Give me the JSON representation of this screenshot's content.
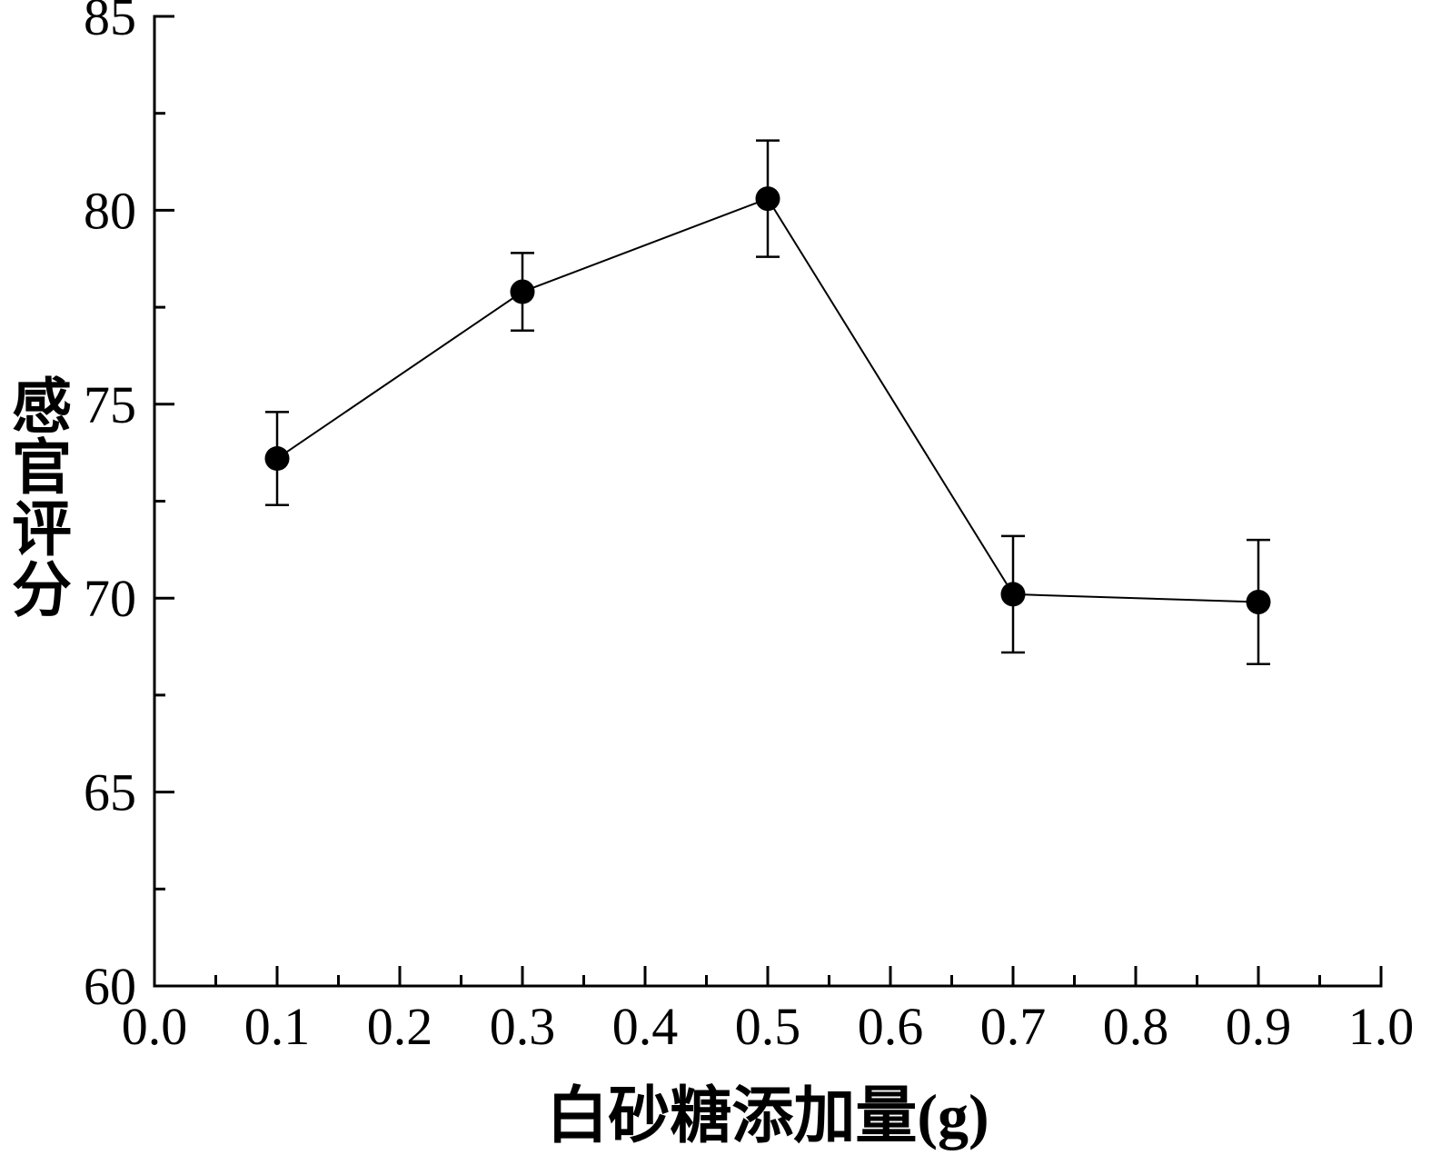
{
  "chart_data": {
    "type": "line",
    "title": "",
    "xlabel": "白砂糖添加量(g)",
    "ylabel": "感官评分",
    "x": [
      0.1,
      0.3,
      0.5,
      0.7,
      0.9
    ],
    "y": [
      73.6,
      77.9,
      80.3,
      70.1,
      69.9
    ],
    "yerr": [
      1.2,
      1.0,
      1.5,
      1.5,
      1.6
    ],
    "xlim": [
      0.0,
      1.0
    ],
    "ylim": [
      60,
      85
    ],
    "xticks": [
      0.0,
      0.1,
      0.2,
      0.3,
      0.4,
      0.5,
      0.6,
      0.7,
      0.8,
      0.9,
      1.0
    ],
    "xtick_labels": [
      "0.0",
      "0.1",
      "0.2",
      "0.3",
      "0.4",
      "0.5",
      "0.6",
      "0.7",
      "0.8",
      "0.9",
      "1.0"
    ],
    "yticks": [
      60,
      65,
      70,
      75,
      80,
      85
    ],
    "ytick_labels": [
      "60",
      "65",
      "70",
      "75",
      "80",
      "85"
    ],
    "x_minor_step": 0.05,
    "y_minor_step": 2.5,
    "line_color": "#000000",
    "marker": "filled-circle",
    "marker_color": "#000000",
    "background": "#ffffff",
    "grid": false,
    "legend": "none"
  }
}
